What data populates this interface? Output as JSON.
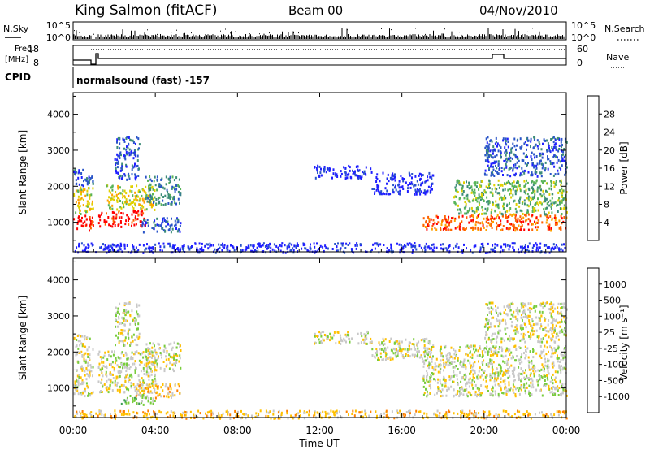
{
  "header": {
    "station": "King Salmon (fitACF)",
    "beam": "Beam 00",
    "date": "04/Nov/2010"
  },
  "strips": {
    "nsky_label": "N.Sky",
    "nsky_ticks": [
      "10^5",
      "10^0"
    ],
    "nsearch_label": "N.Search",
    "nsearch_ticks": [
      "10^5",
      "10^0"
    ],
    "freq_label": "Freq.",
    "freq_unit": "[MHz]",
    "freq_ticks": [
      "18",
      "8"
    ],
    "nave_label": "Nave",
    "nave_ticks": [
      "60",
      "0"
    ],
    "cpid_label": "CPID",
    "cpid_text": "normalsound (fast) -157"
  },
  "chart_data": [
    {
      "type": "heatmap",
      "title": "",
      "xlabel": "Time UT",
      "ylabel": "Slant Range [km]",
      "x_ticks": [
        "00:00",
        "04:00",
        "08:00",
        "12:00",
        "16:00",
        "20:00",
        "00:00"
      ],
      "xlim_hours": [
        0,
        24
      ],
      "y_ticks": [
        1000,
        2000,
        3000,
        4000
      ],
      "ylim": [
        180,
        4600
      ],
      "colorbar": {
        "label": "Power [dB]",
        "ticks": [
          "4",
          "8",
          "12",
          "16",
          "20",
          "24",
          "28"
        ],
        "colors": [
          "#1f1fff",
          "#2a55c8",
          "#3c8c78",
          "#58b458",
          "#e0d000",
          "#ffa000",
          "#ff6000",
          "#ff0000"
        ]
      },
      "regions": [
        {
          "t0": 0.0,
          "t1": 0.95,
          "r0": 800,
          "r1": 1250,
          "level": 7
        },
        {
          "t0": 0.0,
          "t1": 0.95,
          "r0": 1250,
          "r1": 2000,
          "level": 4
        },
        {
          "t0": 0.0,
          "t1": 0.95,
          "r0": 2000,
          "r1": 2500,
          "level": 1
        },
        {
          "t0": 1.2,
          "t1": 3.5,
          "r0": 900,
          "r1": 1350,
          "level": 7
        },
        {
          "t0": 1.6,
          "t1": 4.0,
          "r0": 1350,
          "r1": 2050,
          "level": 4
        },
        {
          "t0": 2.0,
          "t1": 3.2,
          "r0": 2200,
          "r1": 3400,
          "level": 1
        },
        {
          "t0": 3.5,
          "t1": 5.2,
          "r0": 1500,
          "r1": 2300,
          "level": 2
        },
        {
          "t0": 3.3,
          "t1": 5.3,
          "r0": 750,
          "r1": 1150,
          "level": 1
        },
        {
          "t0": 11.7,
          "t1": 14.5,
          "r0": 2250,
          "r1": 2600,
          "level": 0
        },
        {
          "t0": 14.5,
          "t1": 17.5,
          "r0": 1800,
          "r1": 2400,
          "level": 0
        },
        {
          "t0": 17.0,
          "t1": 24.0,
          "r0": 800,
          "r1": 1250,
          "level": 6
        },
        {
          "t0": 18.5,
          "t1": 24.0,
          "r0": 1250,
          "r1": 2200,
          "level": 3
        },
        {
          "t0": 20.0,
          "t1": 24.0,
          "r0": 2300,
          "r1": 3400,
          "level": 1
        },
        {
          "t0": 0.0,
          "t1": 24.0,
          "r0": 180,
          "r1": 450,
          "level": 0
        }
      ]
    },
    {
      "type": "heatmap",
      "title": "",
      "xlabel": "Time UT",
      "ylabel": "Slant Range [km]",
      "x_ticks": [
        "00:00",
        "04:00",
        "08:00",
        "12:00",
        "16:00",
        "20:00",
        "00:00"
      ],
      "xlim_hours": [
        0,
        24
      ],
      "y_ticks": [
        1000,
        2000,
        3000,
        4000
      ],
      "ylim": [
        180,
        4600
      ],
      "colorbar": {
        "label": "Velocity [m s⁻¹]",
        "ticks": [
          "1000",
          "500",
          "100",
          "25",
          "-25",
          "-100",
          "-500",
          "-1000"
        ],
        "colors": [
          "#2a3cc8",
          "#3c7c90",
          "#3ca050",
          "#78cc3c",
          "#c8c8c8",
          "#ffc000",
          "#ff8000",
          "#ff4000",
          "#ff0000"
        ]
      },
      "regions": [
        {
          "t0": 0.0,
          "t1": 0.95,
          "r0": 800,
          "r1": 2500,
          "level": 4
        },
        {
          "t0": 1.2,
          "t1": 4.0,
          "r0": 900,
          "r1": 2050,
          "level": 4
        },
        {
          "t0": 2.0,
          "t1": 3.2,
          "r0": 2200,
          "r1": 3400,
          "level": 4
        },
        {
          "t0": 3.5,
          "t1": 5.2,
          "r0": 1500,
          "r1": 2300,
          "level": 4
        },
        {
          "t0": 3.0,
          "t1": 5.2,
          "r0": 750,
          "r1": 1150,
          "level": 5
        },
        {
          "t0": 2.3,
          "t1": 4.0,
          "r0": 560,
          "r1": 850,
          "level": 3
        },
        {
          "t0": 11.7,
          "t1": 14.5,
          "r0": 2250,
          "r1": 2600,
          "level": 4
        },
        {
          "t0": 14.5,
          "t1": 17.5,
          "r0": 1800,
          "r1": 2400,
          "level": 4
        },
        {
          "t0": 17.0,
          "t1": 24.0,
          "r0": 800,
          "r1": 2200,
          "level": 4
        },
        {
          "t0": 20.0,
          "t1": 24.0,
          "r0": 2300,
          "r1": 3400,
          "level": 4
        },
        {
          "t0": 0.0,
          "t1": 24.0,
          "r0": 180,
          "r1": 400,
          "level": 5
        }
      ]
    }
  ]
}
